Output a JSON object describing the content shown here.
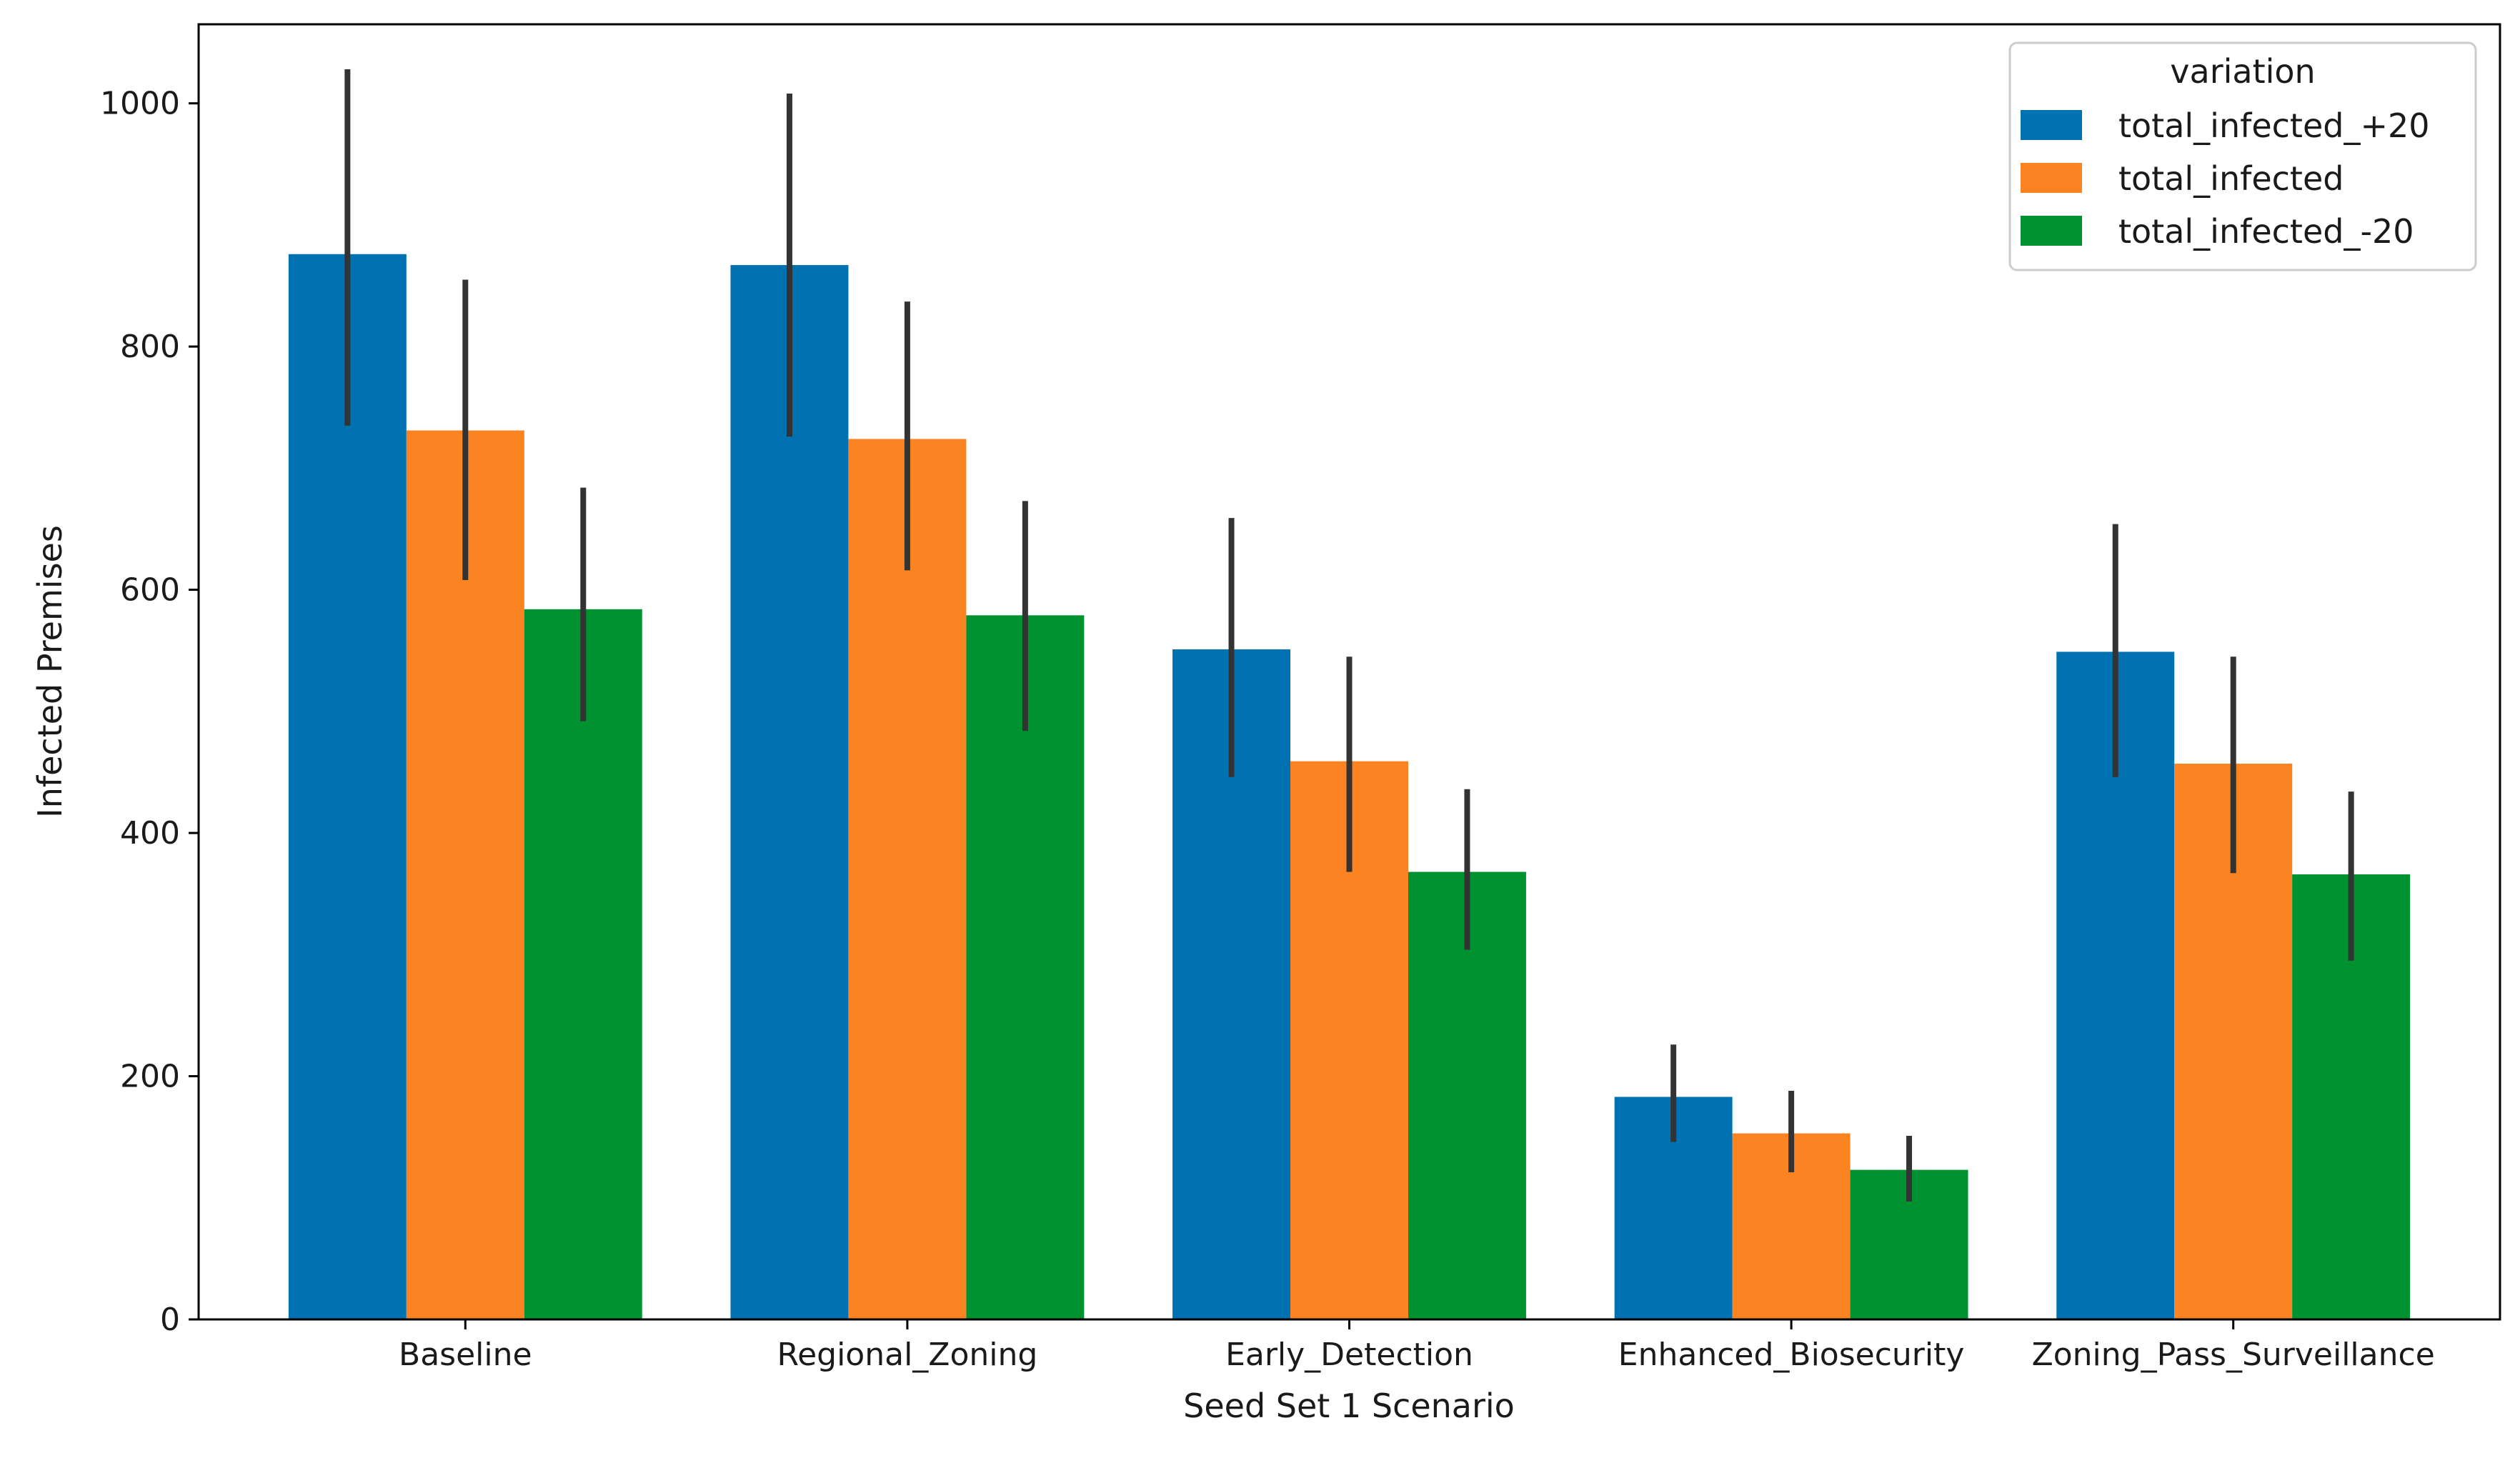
{
  "chart_data": {
    "type": "bar",
    "title": "",
    "xlabel": "Seed Set 1 Scenario",
    "ylabel": "Infected Premises",
    "categories": [
      "Baseline",
      "Regional_Zoning",
      "Early_Detection",
      "Enhanced_Biosecurity",
      "Zoning_Pass_Surveillance"
    ],
    "ylim": [
      0,
      1065
    ],
    "yticks": [
      0,
      200,
      400,
      600,
      800,
      1000
    ],
    "ytick_labels": [
      "0",
      "200",
      "400",
      "600",
      "800",
      "1000"
    ],
    "legend": {
      "title": "variation",
      "position": "top-right"
    },
    "series": [
      {
        "name": "total_infected_+20",
        "color": "#0072b2",
        "values": [
          876,
          867,
          551,
          183,
          549
        ],
        "err_low": [
          735,
          726,
          446,
          146,
          446
        ],
        "err_high": [
          1028,
          1008,
          659,
          226,
          654
        ]
      },
      {
        "name": "total_infected",
        "color": "#fb8322",
        "values": [
          731,
          724,
          459,
          153,
          457
        ],
        "err_low": [
          608,
          616,
          368,
          121,
          367
        ],
        "err_high": [
          855,
          837,
          545,
          188,
          545
        ]
      },
      {
        "name": "total_infected_-20",
        "color": "#009130",
        "values": [
          584,
          579,
          368,
          123,
          366
        ],
        "err_low": [
          492,
          484,
          304,
          97,
          295
        ],
        "err_high": [
          684,
          673,
          436,
          151,
          434
        ]
      }
    ],
    "error_bar_color": "#333333",
    "grid": false
  }
}
